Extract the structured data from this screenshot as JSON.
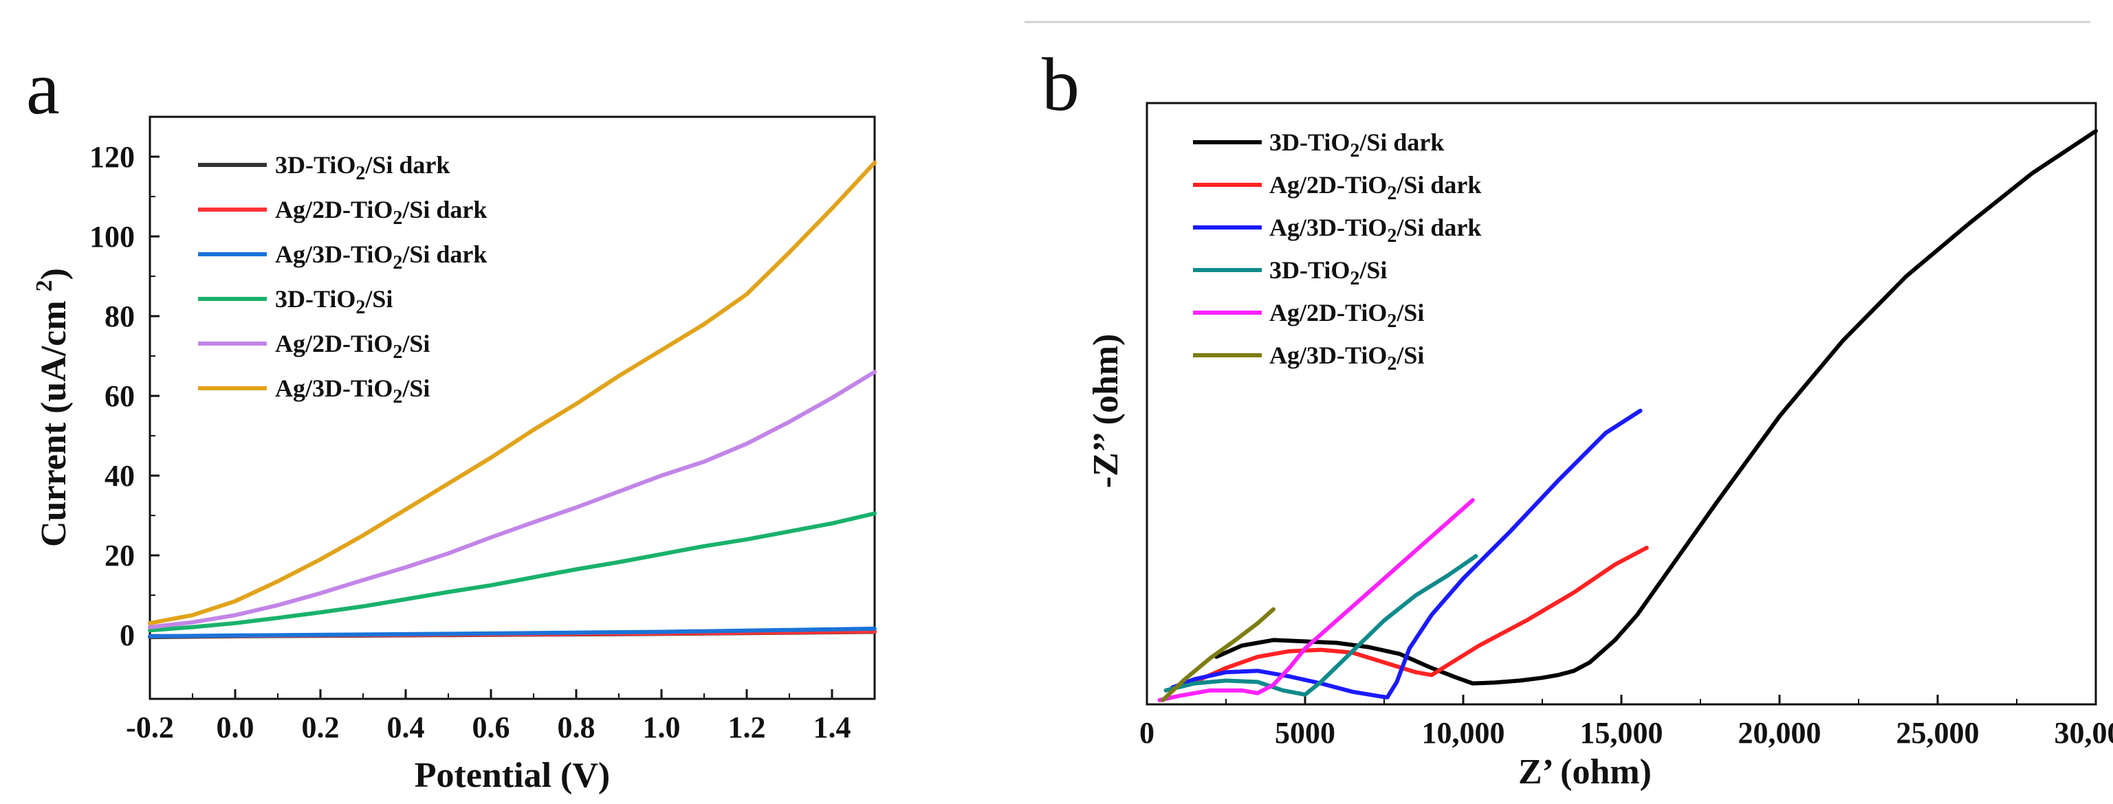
{
  "chart_data": [
    {
      "panel": "a",
      "type": "line",
      "xlabel": "Potential (V)",
      "ylabel": "Current (uA/cm²)",
      "xlim": [
        -0.2,
        1.5
      ],
      "ylim": [
        -16,
        130
      ],
      "xticks": [
        -0.2,
        0.0,
        0.2,
        0.4,
        0.6,
        0.8,
        1.0,
        1.2,
        1.4
      ],
      "xtick_labels": [
        "-0.2",
        "0.0",
        "0.2",
        "0.4",
        "0.6",
        "0.8",
        "1.0",
        "1.2",
        "1.4"
      ],
      "yticks": [
        0,
        20,
        40,
        60,
        80,
        100,
        120
      ],
      "ytick_labels": [
        "0",
        "20",
        "40",
        "60",
        "80",
        "100",
        "120"
      ],
      "legend_position": "top-left",
      "series": [
        {
          "name": "3D-TiO2/Si dark",
          "legend": {
            "pre": "3D-TiO",
            "sub": "2",
            "post": "/Si dark"
          },
          "color": "#333333",
          "x": [
            -0.2,
            0.0,
            0.5,
            1.0,
            1.5
          ],
          "y": [
            -0.5,
            -0.3,
            0.0,
            0.3,
            0.8
          ]
        },
        {
          "name": "Ag/2D-TiO2/Si  dark",
          "legend": {
            "pre": "Ag/2D-TiO",
            "sub": "2",
            "post": "/Si  dark"
          },
          "color": "#ff3333",
          "x": [
            -0.2,
            0.0,
            0.5,
            1.0,
            1.5
          ],
          "y": [
            -0.3,
            -0.2,
            0.1,
            0.4,
            0.9
          ]
        },
        {
          "name": "Ag/3D-TiO2/Si dark",
          "legend": {
            "pre": "Ag/3D-TiO",
            "sub": "2",
            "post": "/Si dark"
          },
          "color": "#1a73d9",
          "x": [
            -0.2,
            0.0,
            0.5,
            1.0,
            1.5
          ],
          "y": [
            -0.3,
            -0.1,
            0.3,
            0.8,
            1.6
          ]
        },
        {
          "name": "3D-TiO2/Si",
          "legend": {
            "pre": "3D-TiO",
            "sub": "2",
            "post": "/Si"
          },
          "color": "#19b26b",
          "x": [
            -0.2,
            -0.1,
            0.0,
            0.1,
            0.2,
            0.3,
            0.4,
            0.5,
            0.6,
            0.7,
            0.8,
            0.9,
            1.0,
            1.1,
            1.2,
            1.3,
            1.4,
            1.5
          ],
          "y": [
            1.2,
            2.0,
            3.0,
            4.3,
            5.7,
            7.2,
            9.0,
            10.8,
            12.5,
            14.5,
            16.5,
            18.3,
            20.3,
            22.3,
            24.0,
            26.0,
            28.0,
            30.5
          ]
        },
        {
          "name": "Ag/2D-TiO2/Si",
          "legend": {
            "pre": "Ag/2D-TiO",
            "sub": "2",
            "post": "/Si"
          },
          "color": "#c285e8",
          "x": [
            -0.2,
            -0.1,
            0.0,
            0.1,
            0.2,
            0.3,
            0.4,
            0.5,
            0.6,
            0.7,
            0.8,
            0.9,
            1.0,
            1.1,
            1.2,
            1.3,
            1.4,
            1.5
          ],
          "y": [
            2.0,
            3.2,
            5.0,
            7.5,
            10.5,
            13.8,
            17.0,
            20.5,
            24.5,
            28.3,
            32.0,
            36.0,
            40.0,
            43.5,
            48.0,
            53.5,
            59.5,
            66.0
          ]
        },
        {
          "name": "Ag/3D-TiO2/Si",
          "legend": {
            "pre": "Ag/3D-TiO",
            "sub": "2",
            "post": "/Si"
          },
          "color": "#e1a31a",
          "x": [
            -0.2,
            -0.1,
            0.0,
            0.1,
            0.2,
            0.3,
            0.4,
            0.5,
            0.6,
            0.7,
            0.8,
            0.9,
            1.0,
            1.1,
            1.2,
            1.3,
            1.4,
            1.5
          ],
          "y": [
            3.0,
            5.0,
            8.5,
            13.5,
            19.0,
            25.0,
            31.5,
            38.0,
            44.5,
            51.5,
            58.0,
            65.0,
            71.5,
            78.0,
            85.5,
            96.0,
            107.0,
            118.5
          ]
        }
      ]
    },
    {
      "panel": "b",
      "type": "line",
      "xlabel": "Z’ (ohm)",
      "ylabel": "-Z’’ (ohm)",
      "xlim": [
        0,
        30000
      ],
      "ylim": [
        0,
        21500
      ],
      "xticks": [
        0,
        5000,
        10000,
        15000,
        20000,
        25000,
        30000
      ],
      "xtick_labels": [
        "0",
        "5000",
        "10,000",
        "15,000",
        "20,000",
        "25,000",
        "30,000"
      ],
      "yticks": [],
      "legend_position": "top-left",
      "series": [
        {
          "name": "3D-TiO2/Si dark",
          "legend": {
            "pre": "3D-TiO",
            "sub": "2",
            "post": "/Si dark"
          },
          "color": "#000000",
          "x": [
            2200,
            3000,
            4000,
            5000,
            6000,
            7000,
            8000,
            9000,
            9800,
            10300,
            11000,
            11800,
            12500,
            13000,
            13500,
            14000,
            14800,
            15500,
            16500,
            18000,
            20000,
            22000,
            24000,
            26000,
            28000,
            30000
          ],
          "y": [
            1700,
            2100,
            2300,
            2250,
            2200,
            2050,
            1800,
            1300,
            950,
            750,
            780,
            850,
            950,
            1050,
            1200,
            1500,
            2300,
            3200,
            4800,
            7200,
            10300,
            13000,
            15300,
            17200,
            19000,
            20500
          ]
        },
        {
          "name": "Ag/2D-TiO2/Si  dark",
          "legend": {
            "pre": "Ag/2D-TiO",
            "sub": "2",
            "post": "/Si  dark"
          },
          "color": "#ff2222",
          "x": [
            1500,
            2500,
            3500,
            4500,
            5500,
            6500,
            7500,
            8500,
            9000,
            9500,
            10500,
            12000,
            13500,
            14800,
            15800
          ],
          "y": [
            800,
            1300,
            1700,
            1900,
            1950,
            1850,
            1500,
            1150,
            1050,
            1400,
            2100,
            3000,
            4000,
            5000,
            5600
          ]
        },
        {
          "name": "Ag/3D-TiO2/Si dark",
          "legend": {
            "pre": "Ag/3D-TiO",
            "sub": "2",
            "post": "/Si dark"
          },
          "color": "#1a1aff",
          "x": [
            800,
            1500,
            2500,
            3500,
            4500,
            5500,
            6500,
            7300,
            7600,
            7900,
            8300,
            9000,
            10000,
            11500,
            13000,
            14500,
            15600
          ],
          "y": [
            600,
            900,
            1150,
            1200,
            1000,
            750,
            450,
            300,
            250,
            800,
            2000,
            3200,
            4500,
            6200,
            8000,
            9700,
            10500
          ]
        },
        {
          "name": "3D-TiO2/Si",
          "legend": {
            "pre": "3D-TiO",
            "sub": "2",
            "post": "/Si"
          },
          "color": "#108a8a",
          "x": [
            600,
            1500,
            2500,
            3500,
            4300,
            5000,
            5500,
            6500,
            7500,
            8500,
            9500,
            10400
          ],
          "y": [
            500,
            750,
            850,
            800,
            500,
            350,
            800,
            1900,
            3000,
            3900,
            4600,
            5300
          ]
        },
        {
          "name": "Ag/2D-TiO2/Si",
          "legend": {
            "pre": "Ag/2D-TiO",
            "sub": "2",
            "post": "/Si"
          },
          "color": "#ff22ff",
          "x": [
            400,
            1000,
            2000,
            3000,
            3500,
            4000,
            4500,
            5000,
            6000,
            7000,
            8000,
            9000,
            10300
          ],
          "y": [
            150,
            300,
            500,
            500,
            400,
            700,
            1300,
            2000,
            3000,
            4000,
            5000,
            6000,
            7300
          ]
        },
        {
          "name": "Ag/3D-TiO2/Si",
          "legend": {
            "pre": "Ag/3D-TiO",
            "sub": "2",
            "post": "/Si"
          },
          "color": "#7d7d12",
          "x": [
            500,
            1200,
            2000,
            2800,
            3500,
            4000
          ],
          "y": [
            150,
            900,
            1650,
            2300,
            2900,
            3400
          ]
        }
      ]
    }
  ]
}
